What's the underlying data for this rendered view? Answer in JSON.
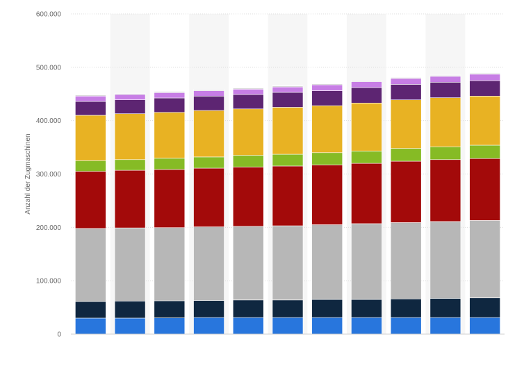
{
  "chart_data": {
    "type": "bar",
    "stacked": true,
    "title": "",
    "xlabel": "",
    "ylabel": "Anzahl der Zugmaschinen",
    "ylim": [
      0,
      600000
    ],
    "yticks": [
      0,
      100000,
      200000,
      300000,
      400000,
      500000,
      600000
    ],
    "ytick_labels": [
      "0",
      "100.000",
      "200.000",
      "300.000",
      "400.000",
      "500.000",
      "600.000"
    ],
    "grid": true,
    "categories": [
      "",
      "",
      "",
      "",
      "",
      "",
      "",
      "",
      "",
      "",
      ""
    ],
    "series": [
      {
        "color": "#2876dd",
        "values": [
          30000,
          30000,
          30500,
          31000,
          31000,
          31000,
          31000,
          31000,
          31000,
          31000,
          31000
        ]
      },
      {
        "color": "#0f2740",
        "values": [
          31000,
          32000,
          32000,
          32000,
          33000,
          33000,
          34000,
          34000,
          35000,
          36000,
          37000
        ]
      },
      {
        "color": "#b7b7b7",
        "values": [
          137000,
          137000,
          137000,
          138000,
          138000,
          139000,
          140000,
          142000,
          143000,
          144000,
          145000
        ]
      },
      {
        "color": "#a30a0a",
        "values": [
          107000,
          108000,
          109000,
          110000,
          111000,
          112000,
          112000,
          113000,
          115000,
          116000,
          116000
        ]
      },
      {
        "color": "#86bb25",
        "values": [
          20000,
          20000,
          21000,
          21000,
          22000,
          22000,
          23000,
          23000,
          24000,
          24000,
          25000
        ]
      },
      {
        "color": "#e8b223",
        "values": [
          85000,
          86000,
          86000,
          87000,
          87000,
          88000,
          88000,
          90000,
          91000,
          92000,
          92000
        ]
      },
      {
        "color": "#5d2572",
        "values": [
          26000,
          26000,
          27000,
          27000,
          27000,
          28000,
          28000,
          29000,
          29000,
          29000,
          29000
        ]
      },
      {
        "color": "#c77ee5",
        "values": [
          10000,
          10000,
          10000,
          10000,
          10000,
          10000,
          11000,
          11000,
          11000,
          11000,
          12000
        ]
      },
      {
        "color": "#d5d5d5",
        "values": [
          2000,
          2000,
          2000,
          2000,
          2000,
          2000,
          2000,
          2000,
          2000,
          2000,
          2000
        ]
      },
      {
        "color": "#5b87e0",
        "values": [
          500,
          500,
          500,
          500,
          500,
          500,
          500,
          500,
          500,
          500,
          500
        ]
      }
    ]
  }
}
